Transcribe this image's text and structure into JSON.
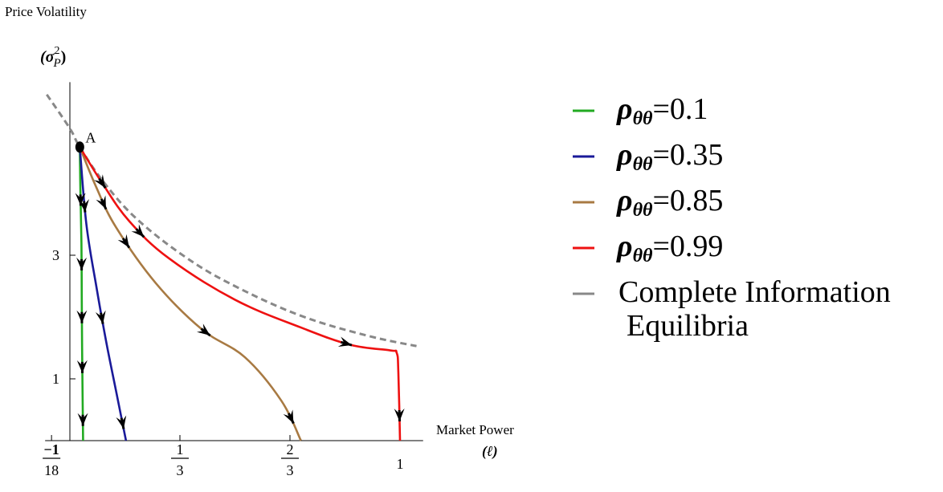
{
  "colors": {
    "rho_01": "#22aa22",
    "rho_035": "#1a1a99",
    "rho_085": "#a87a43",
    "rho_099": "#ee1111",
    "complete": "#888888",
    "arrow": "#000000"
  },
  "chart_data": {
    "type": "line",
    "ylabel": "Price Volatility",
    "ylabel_symbol": "(σ",
    "ylabel_sup": "2",
    "ylabel_sub": "P",
    "ylabel_close": ")",
    "xlabel": "Market Power",
    "xlabel_symbol": "(ℓ)",
    "xlim": [
      -0.075,
      1.07
    ],
    "ylim": [
      0,
      5.8
    ],
    "x_ticks": [
      {
        "value": -0.0556,
        "num": "−1",
        "den": "18"
      },
      {
        "value": 0.3333,
        "num": "1",
        "den": "3"
      },
      {
        "value": 0.6667,
        "num": "2",
        "den": "3"
      },
      {
        "value": 1,
        "label": "1"
      }
    ],
    "y_ticks": [
      {
        "value": 1,
        "label": "1"
      },
      {
        "value": 3,
        "label": "3"
      }
    ],
    "point_label": "A",
    "point": {
      "x": 0.03,
      "y": 4.75
    },
    "series": [
      {
        "name": "ρθθ=0.1",
        "legend_sym": "ρ",
        "legend_sub": "θθ",
        "legend_val": "=0.1",
        "color_key": "rho_01",
        "x": [
          0.03,
          0.032,
          0.035,
          0.036,
          0.037,
          0.04
        ],
        "y": [
          4.75,
          4.0,
          3.2,
          2.3,
          1.5,
          0.0
        ],
        "arrows_at": [
          0.2,
          0.42,
          0.6,
          0.77,
          0.95
        ]
      },
      {
        "name": "ρθθ=0.35",
        "legend_sym": "ρ",
        "legend_sub": "θθ",
        "legend_val": "=0.35",
        "color_key": "rho_035",
        "x": [
          0.03,
          0.05,
          0.08,
          0.11,
          0.14,
          0.17
        ],
        "y": [
          4.75,
          3.5,
          2.5,
          1.6,
          0.8,
          0.0
        ],
        "arrows_at": [
          0.22,
          0.6,
          0.96
        ]
      },
      {
        "name": "ρθθ=0.85",
        "legend_sym": "ρ",
        "legend_sub": "θθ",
        "legend_val": "=0.85",
        "color_key": "rho_085",
        "x": [
          0.03,
          0.08,
          0.14,
          0.26,
          0.4,
          0.53,
          0.64,
          0.7
        ],
        "y": [
          4.75,
          4.1,
          3.45,
          2.55,
          1.8,
          1.35,
          0.65,
          0.0
        ],
        "arrows_at": [
          0.18,
          0.3,
          0.62,
          0.95
        ]
      },
      {
        "name": "ρθθ=0.99",
        "legend_sym": "ρ",
        "legend_sub": "θθ",
        "legend_val": "=0.99",
        "color_key": "rho_099",
        "x": [
          0.03,
          0.1,
          0.18,
          0.3,
          0.5,
          0.7,
          0.85,
          0.97,
          0.99,
          0.995,
          1.0
        ],
        "y": [
          4.75,
          4.15,
          3.55,
          2.95,
          2.28,
          1.83,
          1.55,
          1.46,
          1.42,
          1.1,
          0.0
        ],
        "arrows_at": [
          0.1,
          0.23,
          0.72,
          0.96
        ]
      }
    ],
    "complete_information": {
      "name": "Complete Information Equilibria",
      "legend_line1": "Complete Information",
      "legend_line2": "Equilibria",
      "color_key": "complete",
      "x": [
        -0.07,
        0.0,
        0.03,
        0.1,
        0.2,
        0.35,
        0.5,
        0.7,
        0.9,
        1.05
      ],
      "y": [
        5.6,
        5.05,
        4.75,
        4.2,
        3.6,
        2.97,
        2.5,
        2.02,
        1.7,
        1.53
      ]
    }
  }
}
